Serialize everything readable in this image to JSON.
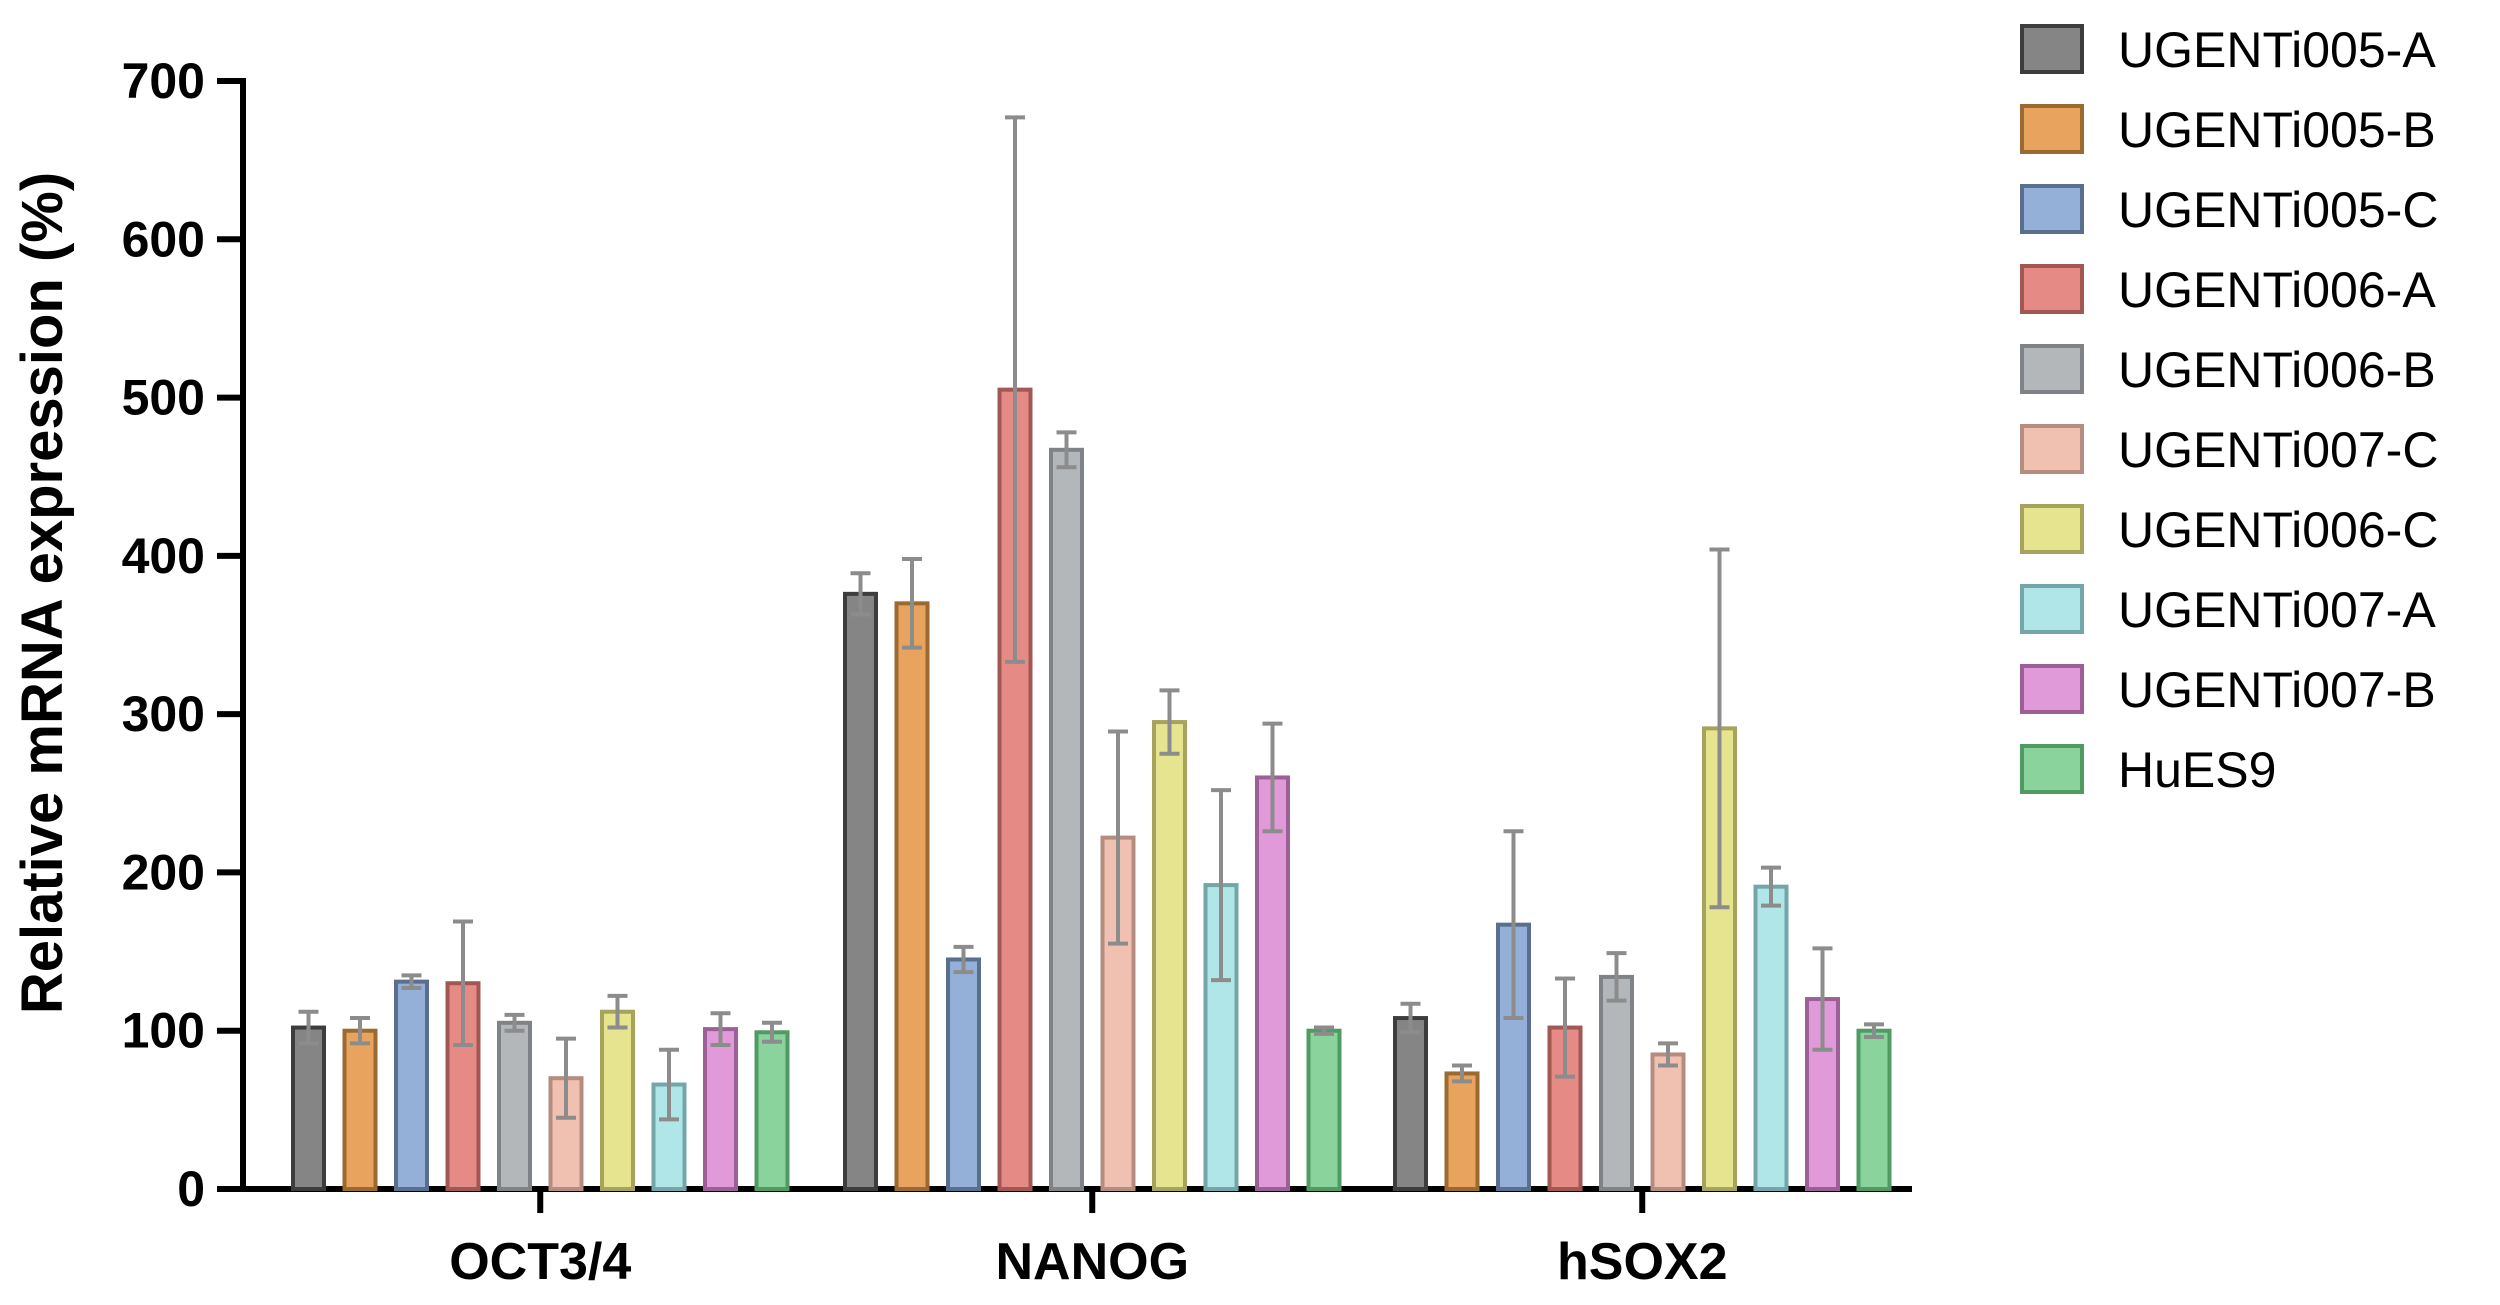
{
  "chart_data": {
    "type": "bar",
    "ylabel": "Relative mRNA expression (%)",
    "xlabel": "",
    "ylim": [
      0,
      700
    ],
    "yticks": [
      0,
      100,
      200,
      300,
      400,
      500,
      600,
      700
    ],
    "categories": [
      "OCT3/4",
      "NANOG",
      "hSOX2"
    ],
    "legend_position": "right",
    "error_bar_color": "#8c8c8c",
    "series": [
      {
        "name": "UGENTi005-A",
        "fill": "#858585",
        "stroke": "#3d3d3d",
        "values": [
          102,
          376,
          108
        ],
        "errors": [
          10,
          13,
          9
        ]
      },
      {
        "name": "UGENTi005-B",
        "fill": "#e8a45e",
        "stroke": "#9b6a30",
        "values": [
          100,
          370,
          73
        ],
        "errors": [
          8,
          28,
          5
        ]
      },
      {
        "name": "UGENTi005-C",
        "fill": "#95b0d8",
        "stroke": "#5a6e8e",
        "values": [
          131,
          145,
          167
        ],
        "errors": [
          4,
          8,
          59
        ]
      },
      {
        "name": "UGENTi006-A",
        "fill": "#e68a86",
        "stroke": "#a15753",
        "values": [
          130,
          505,
          102
        ],
        "errors": [
          39,
          172,
          31
        ]
      },
      {
        "name": "UGENTi006-B",
        "fill": "#b4b7ba",
        "stroke": "#7f8286",
        "values": [
          105,
          467,
          134
        ],
        "errors": [
          5,
          11,
          15
        ]
      },
      {
        "name": "UGENTi007-C",
        "fill": "#f0c0b0",
        "stroke": "#b48c80",
        "values": [
          70,
          222,
          85
        ],
        "errors": [
          25,
          67,
          7
        ]
      },
      {
        "name": "UGENTi006-C",
        "fill": "#e6e48e",
        "stroke": "#a6a35c",
        "values": [
          112,
          295,
          291
        ],
        "errors": [
          10,
          20,
          113
        ]
      },
      {
        "name": "UGENTi007-A",
        "fill": "#b1e6e8",
        "stroke": "#72a6a9",
        "values": [
          66,
          192,
          191
        ],
        "errors": [
          22,
          60,
          12
        ]
      },
      {
        "name": "UGENTi007-B",
        "fill": "#e09ad9",
        "stroke": "#9c5f96",
        "values": [
          101,
          260,
          120
        ],
        "errors": [
          10,
          34,
          32
        ]
      },
      {
        "name": "HuES9",
        "fill": "#8ad39d",
        "stroke": "#4f9b63",
        "values": [
          99,
          100,
          100
        ],
        "errors": [
          6,
          2,
          4
        ]
      }
    ]
  }
}
